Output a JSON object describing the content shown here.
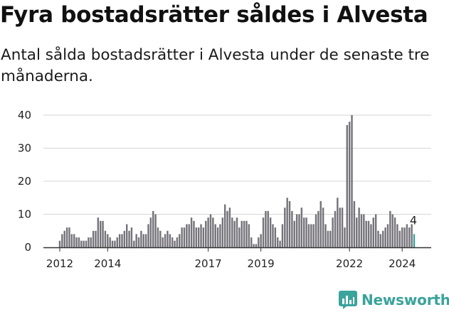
{
  "header": {
    "title": "Fyra bostadsrätter såldes i Alvesta",
    "subtitle": "Antal sålda bostadsrätter i Alvesta under de senaste tre månaderna."
  },
  "logo": {
    "text": "Newsworthy",
    "icon": "newsworthy-chart-icon",
    "color": "#3aa39b"
  },
  "chart_data": {
    "type": "bar",
    "title": "",
    "xlabel": "",
    "ylabel": "",
    "ylim": [
      0,
      40
    ],
    "yticks": [
      "0",
      "10",
      "20",
      "30",
      "40"
    ],
    "xticks": [
      "2012",
      "2014",
      "2017",
      "2019",
      "2022",
      "2024"
    ],
    "grid": "horizontal",
    "bar_color": "#75737a",
    "highlight_color": "#3aa39b",
    "annotation": {
      "text": "4",
      "target": "last bar"
    },
    "series": [
      {
        "values": [
          2,
          4,
          5,
          6,
          6,
          4,
          4,
          3,
          3,
          2,
          2,
          2,
          3,
          3,
          5,
          5,
          9,
          8,
          8,
          5,
          4,
          3,
          2,
          2,
          3,
          4,
          4,
          5,
          7,
          5,
          6,
          2,
          4,
          3,
          5,
          4,
          4,
          7,
          9,
          11,
          10,
          6,
          5,
          3,
          4,
          5,
          4,
          3,
          2,
          3,
          4,
          6,
          6,
          7,
          7,
          9,
          8,
          6,
          6,
          7,
          6,
          8,
          9,
          10,
          9,
          7,
          6,
          7,
          9,
          13,
          11,
          12,
          9,
          8,
          9,
          6,
          8,
          8,
          8,
          7,
          3,
          1,
          1,
          3,
          4,
          9,
          11,
          11,
          9,
          7,
          6,
          3,
          2,
          7,
          12,
          15,
          14,
          11,
          8,
          10,
          10,
          12,
          9,
          9,
          7,
          7,
          7,
          10,
          11,
          14,
          12,
          7,
          5,
          5,
          9,
          11,
          15,
          12,
          12,
          6,
          37,
          38,
          40,
          14,
          9,
          12,
          10,
          10,
          8,
          8,
          7,
          9,
          10,
          5,
          4,
          5,
          6,
          7,
          11,
          10,
          9,
          7,
          5,
          6,
          6,
          7,
          6,
          7,
          4
        ],
        "highlight_last": true
      }
    ]
  }
}
